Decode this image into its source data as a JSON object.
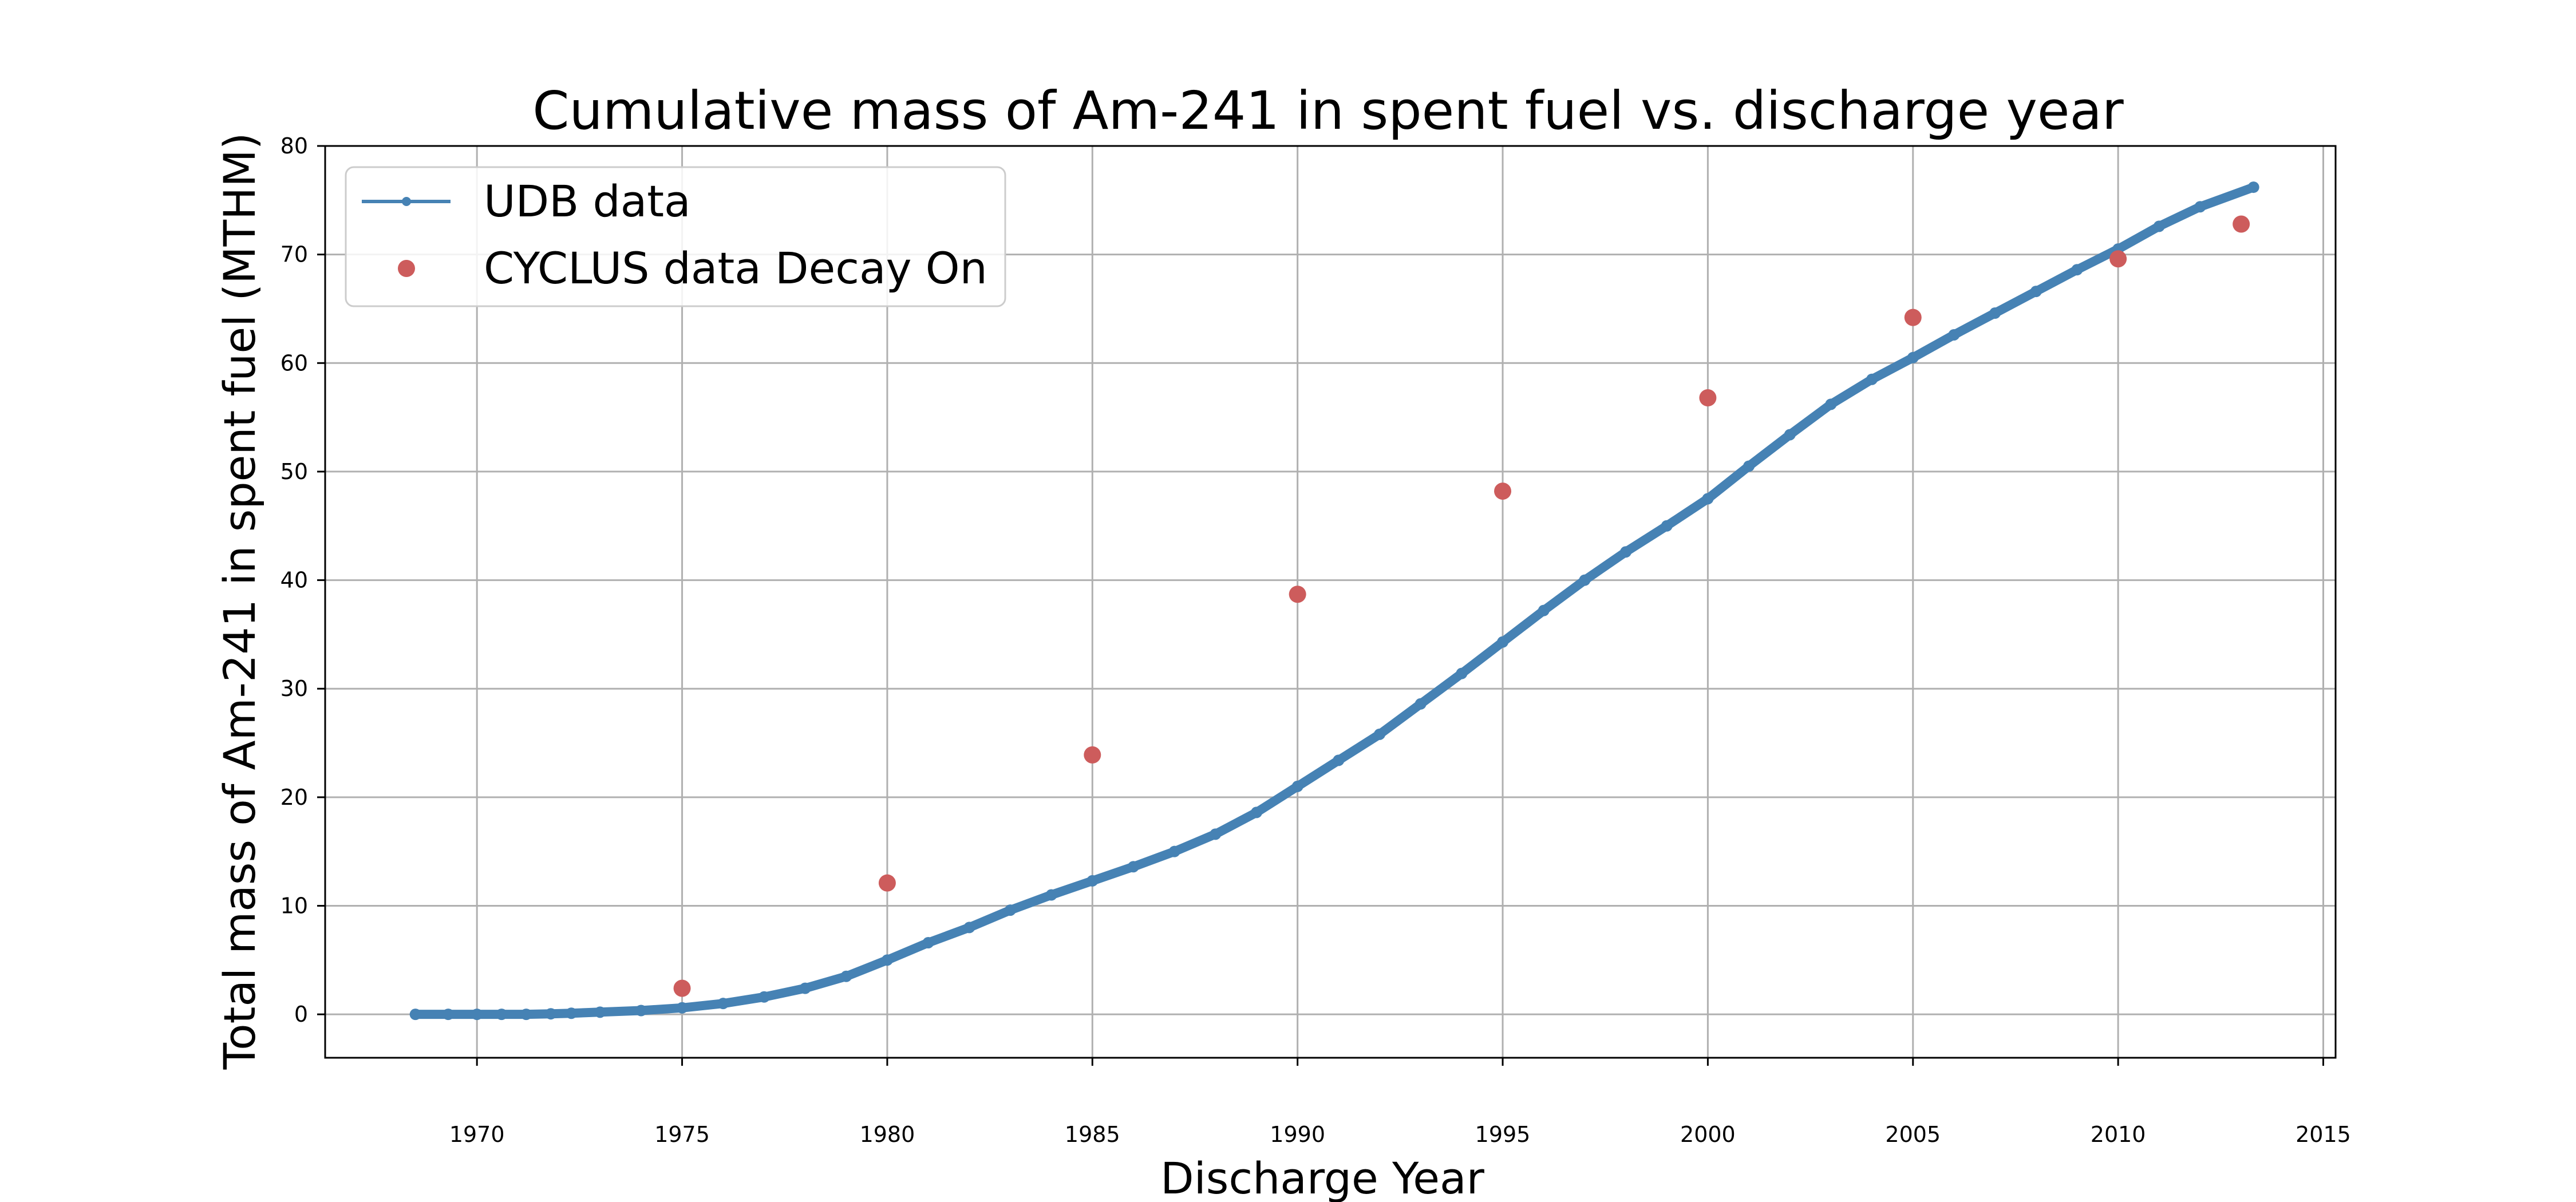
{
  "chart_data": {
    "type": "scatter",
    "title": "Cumulative mass of Am-241 in spent fuel vs. discharge year",
    "xlabel": "Discharge Year",
    "ylabel": "Total mass of Am-241 in spent fuel (MTHM)",
    "xlim": [
      1966.3,
      2015.3
    ],
    "ylim": [
      -4,
      80
    ],
    "xticks": [
      1970,
      1975,
      1980,
      1985,
      1990,
      1995,
      2000,
      2005,
      2010,
      2015
    ],
    "yticks": [
      0,
      10,
      20,
      30,
      40,
      50,
      60,
      70,
      80
    ],
    "grid": true,
    "legend_position": "top-left",
    "series": [
      {
        "name": "UDB data",
        "kind": "line-with-markers",
        "color": "#4682b4",
        "x": [
          1968.5,
          1969.3,
          1970.0,
          1970.6,
          1971.2,
          1971.8,
          1972.3,
          1973.0,
          1974.0,
          1975.0,
          1976.0,
          1977.0,
          1978.0,
          1979.0,
          1980.0,
          1981.0,
          1982.0,
          1983.0,
          1984.0,
          1985.0,
          1986.0,
          1987.0,
          1988.0,
          1989.0,
          1990.0,
          1991.0,
          1992.0,
          1993.0,
          1994.0,
          1995.0,
          1996.0,
          1997.0,
          1998.0,
          1999.0,
          2000.0,
          2001.0,
          2002.0,
          2003.0,
          2004.0,
          2005.0,
          2006.0,
          2007.0,
          2008.0,
          2009.0,
          2010.0,
          2011.0,
          2012.0,
          2013.3
        ],
        "y": [
          0.0,
          0.0,
          0.0,
          0.0,
          0.0,
          0.05,
          0.1,
          0.2,
          0.35,
          0.6,
          1.0,
          1.6,
          2.4,
          3.5,
          5.0,
          6.6,
          8.0,
          9.6,
          11.0,
          12.3,
          13.6,
          15.0,
          16.6,
          18.6,
          21.0,
          23.4,
          25.8,
          28.6,
          31.4,
          34.3,
          37.2,
          40.0,
          42.6,
          45.0,
          47.5,
          50.5,
          53.4,
          56.2,
          58.5,
          60.5,
          62.6,
          64.6,
          66.6,
          68.6,
          70.5,
          72.6,
          74.4,
          76.2
        ]
      },
      {
        "name": "CYCLUS data Decay On",
        "kind": "scatter",
        "color": "#cd5c5c",
        "x": [
          1975,
          1980,
          1985,
          1990,
          1995,
          2000,
          2005,
          2010,
          2013
        ],
        "y": [
          2.4,
          12.1,
          23.9,
          38.7,
          48.2,
          56.8,
          64.2,
          69.6,
          72.8
        ]
      }
    ]
  },
  "colors": {
    "background": "#ffffff",
    "grid": "#b0b0b0",
    "axis": "#000000",
    "legend_border": "#cccccc"
  }
}
